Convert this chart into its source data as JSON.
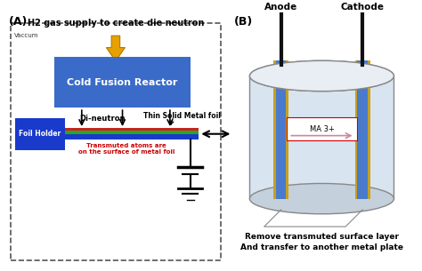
{
  "fig_width": 4.74,
  "fig_height": 3.05,
  "dpi": 100,
  "bg_color": "#ffffff",
  "panel_A": {
    "label": "(A)",
    "vacuum_label": "Vaccum",
    "h2_label": "H2 gas supply to create die neutron",
    "reactor_color": "#3a6bc9",
    "reactor_text": "Cold Fusion Reactor",
    "reactor_text_color": "#ffffff",
    "dineutron_label": "Di-neutron",
    "foil_label": "Thin Solid Metal foil",
    "foil_holder_color": "#1a3acc",
    "foil_holder_text": "Foil Holder",
    "foil_holder_text_color": "#ffffff",
    "transmuted_text": "Transmuted atoms are\non the surface of metal foil",
    "transmuted_text_color": "#cc0000"
  },
  "panel_B": {
    "label": "(B)",
    "anode_label": "Anode",
    "cathode_label": "Cathode",
    "ma_label": "MA 3+",
    "bottom_text1": "Remove transmuted surface layer",
    "bottom_text2": "And transfer to another metal plate"
  },
  "h2_arrow_color": "#e8a000",
  "arrow_color": "#000000"
}
